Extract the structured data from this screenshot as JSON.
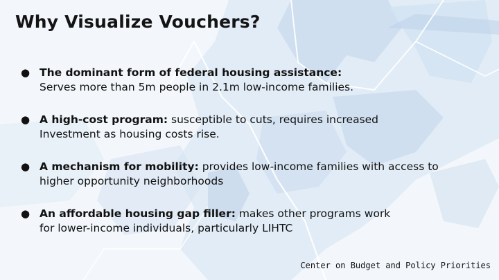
{
  "slide": {
    "title": "Why Visualize Vouchers?",
    "bullets": [
      {
        "lead": "The dominant form of federal housing assistance:",
        "rest": "",
        "line2": "Serves more than 5m people in 2.1m low-income families."
      },
      {
        "lead": "A high-cost program:",
        "rest": " susceptible to cuts, requires increased",
        "line2": "Investment as housing costs rise."
      },
      {
        "lead": "A mechanism for mobility:",
        "rest": " provides low-income families with access to",
        "line2": "higher opportunity neighborhoods"
      },
      {
        "lead": "An affordable housing gap filler:",
        "rest": " makes other programs work",
        "line2": "for lower-income individuals, particularly LIHTC"
      }
    ],
    "footer": "Center on Budget and Policy Priorities"
  },
  "background": {
    "kind": "choropleth-map",
    "colors": [
      "#dce8f4",
      "#c9dbee",
      "#b9cfe8",
      "#e8f0f8"
    ]
  },
  "bullet_glyph": "●"
}
